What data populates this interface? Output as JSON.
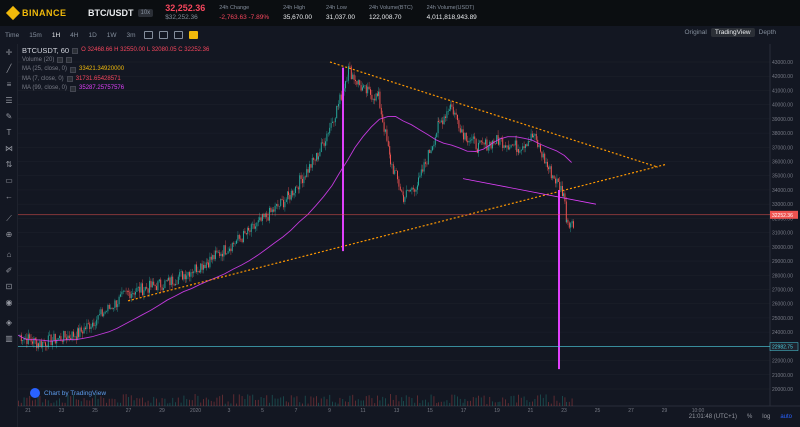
{
  "header": {
    "brand": "BINANCE",
    "pair": "BTC/USDT",
    "leverage": "10x",
    "last_price": "32,252.36",
    "last_price_usd": "$32,252.36",
    "stats": [
      {
        "label": "24h Change",
        "value": "-2,763.63 -7.89%",
        "color": "red"
      },
      {
        "label": "24h High",
        "value": "35,670.00"
      },
      {
        "label": "24h Low",
        "value": "31,037.00"
      },
      {
        "label": "24h Volume(BTC)",
        "value": "122,008.70"
      },
      {
        "label": "24h Volume(USDT)",
        "value": "4,011,818,943.89"
      }
    ]
  },
  "toolbar": {
    "intervals": [
      "Time",
      "15m",
      "1H",
      "4H",
      "1D",
      "1W",
      "3m"
    ],
    "active_interval": "1H",
    "views": [
      "Original",
      "TradingView",
      "Depth"
    ],
    "active_view": "TradingView"
  },
  "legend": {
    "symbol": "BTCUSDT, 60",
    "ohlc": "O 32468.66  H 32550.00  L 32080.05  C 32252.36",
    "volume": "Volume (20)",
    "ma25": "MA (25, close, 0)",
    "ma25_val": "33421.34920000",
    "ma7": "MA (7, close, 0)",
    "ma7_val": "31731.65428571",
    "ma99": "MA (99, close, 0)",
    "ma99_val": "35287.25757576"
  },
  "price_axis": [
    "43000.00",
    "42000.00",
    "41000.00",
    "40000.00",
    "39000.00",
    "38000.00",
    "37000.00",
    "36000.00",
    "35000.00",
    "34000.00",
    "33000.00",
    "32000.00",
    "31000.00",
    "30000.00",
    "29000.00",
    "28000.00",
    "27000.00",
    "26000.00",
    "25000.00",
    "24000.00",
    "23000.00",
    "22000.00",
    "21000.00",
    "20000.00"
  ],
  "current_price_tag": "32252.36",
  "support_tag": "22982.75",
  "time_axis": [
    "21",
    "23",
    "25",
    "27",
    "29",
    "2020",
    "3",
    "5",
    "7",
    "9",
    "11",
    "13",
    "15",
    "17",
    "19",
    "21",
    "23",
    "25",
    "27",
    "29",
    "10:00"
  ],
  "footer": {
    "clock": "21:01:48 (UTC+1)",
    "percent": "%",
    "log": "log",
    "auto": "auto"
  },
  "tv_badge": "Chart by TradingView",
  "colors": {
    "up": "#26a69a",
    "down": "#ef5350",
    "trend": "#ff9800",
    "ma99": "#e040fb",
    "arrow": "#e040fb",
    "ma25": "#f0b90b"
  }
}
